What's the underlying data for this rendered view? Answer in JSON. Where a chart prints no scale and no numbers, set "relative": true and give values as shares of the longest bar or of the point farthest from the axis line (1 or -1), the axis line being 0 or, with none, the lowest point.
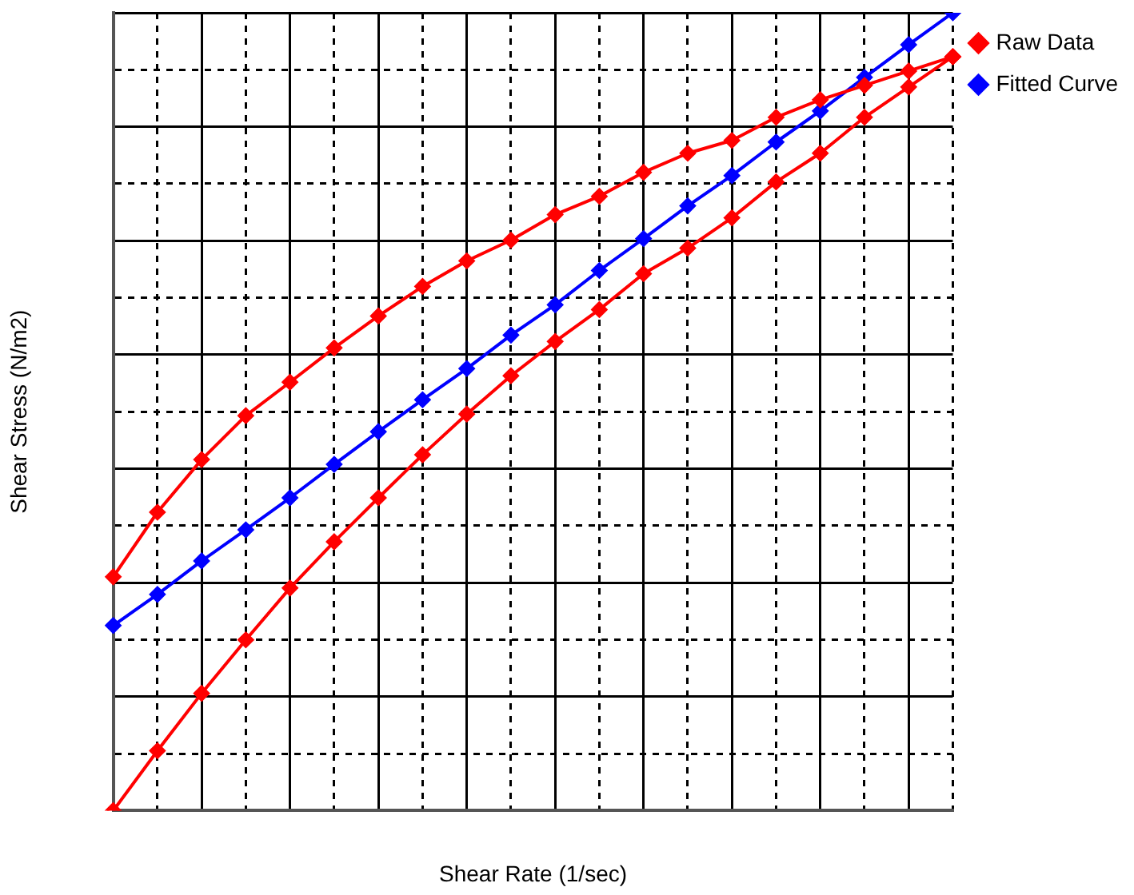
{
  "chart_data": {
    "type": "line",
    "relative": true,
    "xlabel": "Shear Rate (1/sec)",
    "ylabel": "Shear Stress (N/m2)",
    "legend": "right",
    "grid": true,
    "marker": "diamond",
    "line_style": "solid",
    "categories": [
      null,
      null,
      null,
      null,
      null,
      null,
      null,
      null,
      null,
      null,
      null,
      null,
      null,
      null,
      null,
      null,
      null,
      null,
      null,
      null
    ],
    "series": [
      {
        "name": "Raw Data",
        "color": "#ff0000",
        "values": [
          0,
          0.075,
          0.147,
          0.214,
          0.279,
          0.337,
          0.392,
          0.446,
          0.497,
          0.545,
          0.588,
          0.628,
          0.673,
          0.705,
          0.743,
          0.788,
          0.824,
          0.869,
          0.907,
          0.945
        ]
      },
      {
        "color": "#ff0000",
        "values": [
          0.293,
          0.374,
          0.44,
          0.495,
          0.537,
          0.58,
          0.62,
          0.657,
          0.689,
          0.715,
          0.747,
          0.77,
          0.8,
          0.824,
          0.84,
          0.869,
          0.891,
          0.909,
          0.927,
          0.945
        ]
      },
      {
        "name": "Fitted Curve",
        "color": "#0000ff",
        "values": [
          0.232,
          0.271,
          0.313,
          0.352,
          0.392,
          0.434,
          0.475,
          0.515,
          0.554,
          0.596,
          0.634,
          0.677,
          0.717,
          0.758,
          0.796,
          0.838,
          0.877,
          0.919,
          0.96,
          1
        ]
      }
    ]
  }
}
